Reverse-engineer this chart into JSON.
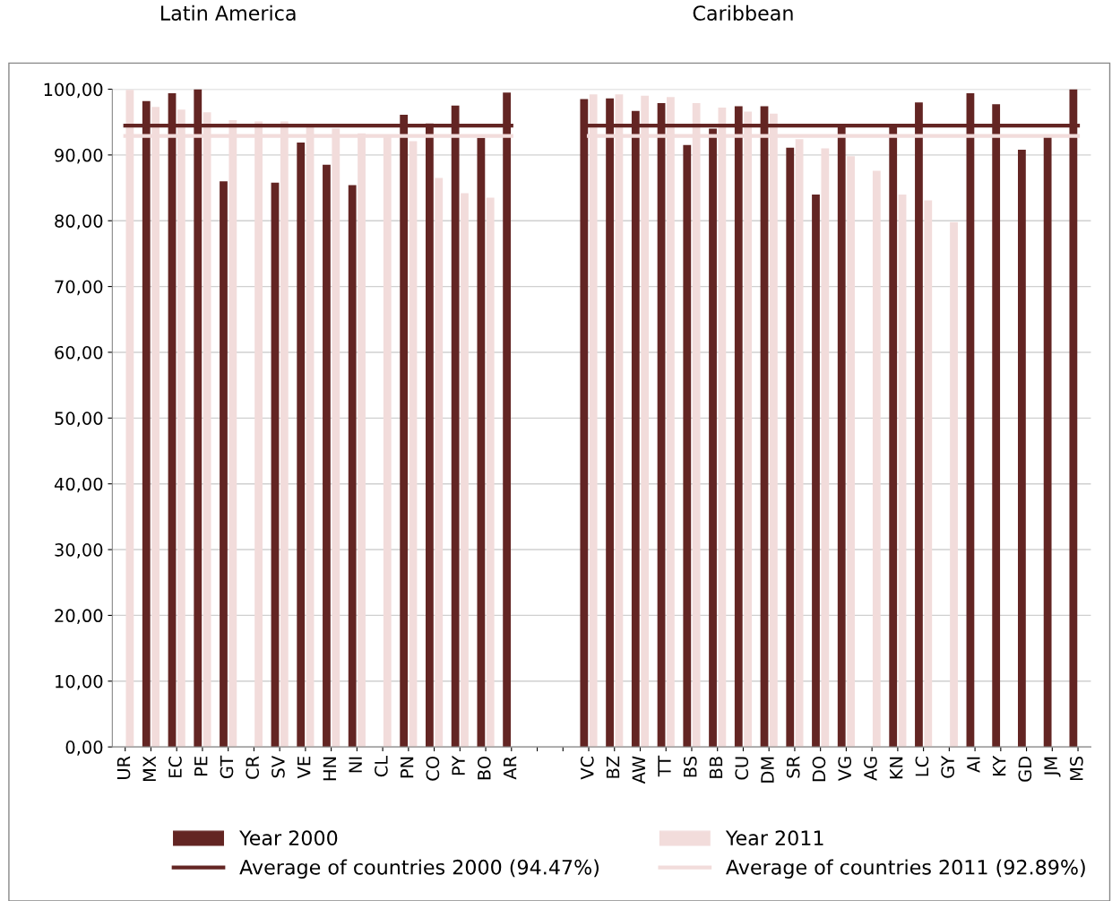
{
  "chart_data": {
    "type": "bar",
    "annotations": [
      "Latin America",
      "Caribbean"
    ],
    "categories": [
      "UR",
      "MX",
      "EC",
      "PE",
      "GT",
      "CR",
      "SV",
      "VE",
      "HN",
      "NI",
      "CL",
      "PN",
      "CO",
      "PY",
      "BO",
      "AR",
      null,
      null,
      "VC",
      "BZ",
      "AW",
      "TT",
      "BS",
      "BB",
      "CU",
      "DM",
      "SR",
      "DO",
      "VG",
      "AG",
      "KN",
      "LC",
      "GY",
      "AI",
      "KY",
      "GD",
      "JM",
      "MS"
    ],
    "series": [
      {
        "name": "Year 2000",
        "color": "#632523",
        "values": [
          null,
          98.2,
          99.4,
          100.0,
          86.0,
          null,
          85.8,
          91.9,
          88.5,
          85.4,
          null,
          96.1,
          94.8,
          97.5,
          92.6,
          99.5,
          null,
          null,
          98.5,
          98.6,
          96.7,
          97.9,
          91.5,
          94.0,
          97.4,
          97.4,
          91.1,
          84.0,
          94.4,
          null,
          94.4,
          98.0,
          null,
          99.4,
          97.7,
          90.8,
          92.7,
          100.0
        ]
      },
      {
        "name": "Year 2011",
        "color": "#f2dcdb",
        "values": [
          99.9,
          97.3,
          96.9,
          96.5,
          95.3,
          95.1,
          95.1,
          94.3,
          94.0,
          93.3,
          92.9,
          92.1,
          86.5,
          84.2,
          83.5,
          null,
          null,
          null,
          99.2,
          99.2,
          99.0,
          98.8,
          97.9,
          97.2,
          96.6,
          96.3,
          92.4,
          91.0,
          89.8,
          87.6,
          84.0,
          83.1,
          79.8,
          null,
          null,
          null,
          null,
          null
        ]
      },
      {
        "name": "Average of countries 2000 (94.47%)",
        "type": "line",
        "color": "#632523",
        "values": [
          94.47,
          94.47,
          94.47,
          94.47,
          94.47,
          94.47,
          94.47,
          94.47,
          94.47,
          94.47,
          94.47,
          94.47,
          94.47,
          94.47,
          94.47,
          94.47,
          null,
          null,
          94.47,
          94.47,
          94.47,
          94.47,
          94.47,
          94.47,
          94.47,
          94.47,
          94.47,
          94.47,
          94.47,
          94.47,
          94.47,
          94.47,
          94.47,
          94.47,
          94.47,
          94.47,
          94.47,
          94.47
        ]
      },
      {
        "name": "Average of countries 2011 (92.89%)",
        "type": "line",
        "color": "#f2dcdb",
        "values": [
          92.89,
          92.89,
          92.89,
          92.89,
          92.89,
          92.89,
          92.89,
          92.89,
          92.89,
          92.89,
          92.89,
          92.89,
          92.89,
          92.89,
          92.89,
          92.89,
          null,
          null,
          92.89,
          92.89,
          92.89,
          92.89,
          92.89,
          92.89,
          92.89,
          92.89,
          92.89,
          92.89,
          92.89,
          92.89,
          92.89,
          92.89,
          92.89,
          92.89,
          92.89,
          92.89,
          92.89,
          92.89
        ]
      }
    ],
    "ylim": [
      0,
      100
    ],
    "yticks": [
      {
        "value": 0,
        "label": "0,00"
      },
      {
        "value": 10,
        "label": "10,00"
      },
      {
        "value": 20,
        "label": "20,00"
      },
      {
        "value": 30,
        "label": "30,00"
      },
      {
        "value": 40,
        "label": "40,00"
      },
      {
        "value": 50,
        "label": "50,00"
      },
      {
        "value": 60,
        "label": "60,00"
      },
      {
        "value": 70,
        "label": "70,00"
      },
      {
        "value": 80,
        "label": "80,00"
      },
      {
        "value": 90,
        "label": "90,00"
      },
      {
        "value": 100,
        "label": "100,00"
      }
    ],
    "grid": "y",
    "legend": "bottom"
  }
}
